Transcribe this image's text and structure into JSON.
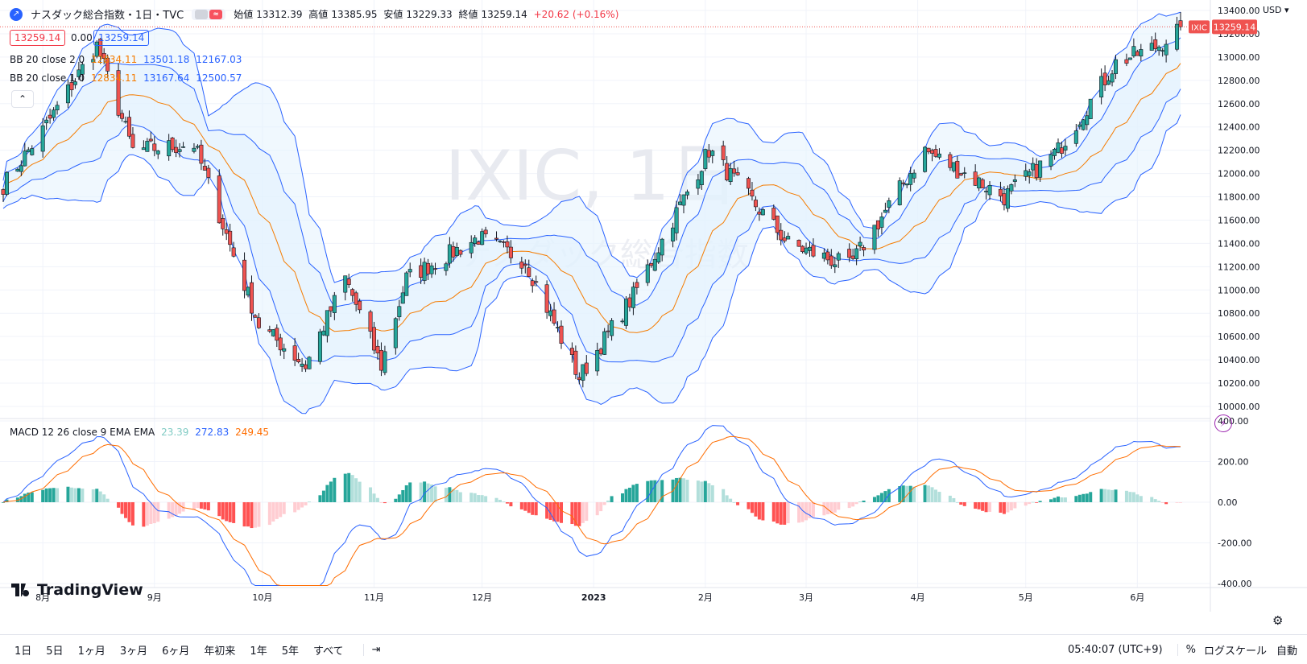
{
  "header": {
    "symbol_title": "ナスダック総合指数・1日・TVC",
    "ohlc": {
      "open_label": "始値",
      "open": "13312.39",
      "high_label": "高値",
      "high": "13385.95",
      "low_label": "安値",
      "low": "13229.33",
      "close_label": "終値",
      "close": "13259.14",
      "change": "+20.62 (+0.16%)"
    },
    "bid": "13259.14",
    "spread": "0.00",
    "ask": "13259.14"
  },
  "indicators": {
    "bb2": {
      "label": "BB 20 close 2 0",
      "basis": "12834.11",
      "upper": "13501.18",
      "lower": "12167.03"
    },
    "bb1": {
      "label": "BB 20 close 1 0",
      "basis": "12834.11",
      "upper": "13167.64",
      "lower": "12500.57"
    },
    "macd": {
      "label": "MACD 12 26 close 9 EMA EMA",
      "hist": "23.39",
      "macd": "272.83",
      "signal": "249.45"
    }
  },
  "watermark": {
    "symbol": "IXIC, 1日",
    "name": "ナスダック総合指数"
  },
  "price_axis": {
    "currency": "USD",
    "last_price_label": "13259.14",
    "ticker_tag": "IXIC"
  },
  "branding": {
    "logo_text": "TradingView"
  },
  "bottom_bar": {
    "ranges": [
      "1日",
      "5日",
      "1ヶ月",
      "3ヶ月",
      "6ヶ月",
      "年初来",
      "1年",
      "5年",
      "すべて"
    ],
    "time": "05:40:07 (UTC+9)",
    "percent": "%",
    "log_scale": "ログスケール",
    "auto": "自動"
  },
  "colors": {
    "up": "#26a69a",
    "down": "#ef5350",
    "bb_basis": "#f57c00",
    "bb_band": "#2962ff",
    "bb_fill": "#e3f2fd",
    "macd": "#2962ff",
    "signal": "#ff6d00",
    "hist_up_strong": "#26a69a",
    "hist_up_weak": "#b2dfdb",
    "hist_down_strong": "#ff5252",
    "hist_down_weak": "#ffcdd2"
  },
  "chart_data": [
    {
      "type": "candlestick",
      "title": "ナスダック総合指数・1日・TVC",
      "x_ticks": [
        "8月",
        "9月",
        "10月",
        "11月",
        "12月",
        "2023",
        "2月",
        "3月",
        "4月",
        "5月",
        "6月"
      ],
      "y_ticks": [
        10000,
        10200,
        10400,
        10600,
        10800,
        11000,
        11200,
        11400,
        11600,
        11800,
        12000,
        12200,
        12400,
        12600,
        12800,
        13000,
        13200,
        13400
      ],
      "ylim": [
        9900,
        13500
      ],
      "close_trend": [
        [
          "2022-07-21",
          11900
        ],
        [
          "2022-08-01",
          12370
        ],
        [
          "2022-08-16",
          13100
        ],
        [
          "2022-08-26",
          12200
        ],
        [
          "2022-09-12",
          12250
        ],
        [
          "2022-09-30",
          10700
        ],
        [
          "2022-10-13",
          10350
        ],
        [
          "2022-10-24",
          11100
        ],
        [
          "2022-11-03",
          10350
        ],
        [
          "2022-11-10",
          11100
        ],
        [
          "2022-11-30",
          11450
        ],
        [
          "2022-12-13",
          11250
        ],
        [
          "2022-12-28",
          10250
        ],
        [
          "2023-01-12",
          10950
        ],
        [
          "2023-02-02",
          12200
        ],
        [
          "2023-02-24",
          11400
        ],
        [
          "2023-03-13",
          11200
        ],
        [
          "2023-04-03",
          12200
        ],
        [
          "2023-04-25",
          11800
        ],
        [
          "2023-05-10",
          12200
        ],
        [
          "2023-05-26",
          12950
        ],
        [
          "2023-06-07",
          13100
        ],
        [
          "2023-06-13",
          13259.14
        ]
      ],
      "last": {
        "open": 13312.39,
        "high": 13385.95,
        "low": 13229.33,
        "close": 13259.14
      },
      "bollinger_2sd": {
        "basis": 12834.11,
        "upper": 13501.18,
        "lower": 12167.03
      },
      "bollinger_1sd": {
        "basis": 12834.11,
        "upper": 13167.64,
        "lower": 12500.57
      }
    },
    {
      "type": "line",
      "title": "MACD 12 26 close 9 EMA EMA",
      "y_ticks": [
        -400,
        -200,
        0,
        200,
        400
      ],
      "ylim": [
        -410,
        410
      ],
      "last": {
        "histogram": 23.39,
        "macd": 272.83,
        "signal": 249.45
      }
    }
  ]
}
